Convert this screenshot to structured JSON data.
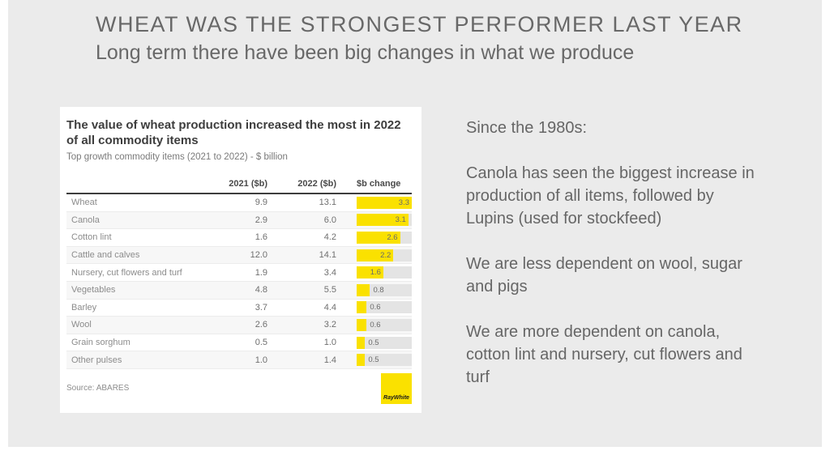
{
  "slide": {
    "title": "WHEAT WAS THE STRONGEST PERFORMER LAST YEAR",
    "subtitle": "Long term there have been big changes in what we produce"
  },
  "chart_data": {
    "type": "table",
    "title": "The value of wheat production increased the most in 2022\nof all commodity items",
    "subtitle": "Top growth commodity items (2021 to 2022) - $ billion",
    "columns": [
      "2021 ($b)",
      "2022 ($b)",
      "$b change"
    ],
    "rows": [
      {
        "label": "Wheat",
        "v2021": 9.9,
        "v2022": 13.1,
        "change": 3.3
      },
      {
        "label": "Canola",
        "v2021": 2.9,
        "v2022": 6.0,
        "change": 3.1
      },
      {
        "label": "Cotton lint",
        "v2021": 1.6,
        "v2022": 4.2,
        "change": 2.6
      },
      {
        "label": "Cattle and calves",
        "v2021": 12.0,
        "v2022": 14.1,
        "change": 2.2
      },
      {
        "label": "Nursery, cut flowers and turf",
        "v2021": 1.9,
        "v2022": 3.4,
        "change": 1.6
      },
      {
        "label": "Vegetables",
        "v2021": 4.8,
        "v2022": 5.5,
        "change": 0.8
      },
      {
        "label": "Barley",
        "v2021": 3.7,
        "v2022": 4.4,
        "change": 0.6
      },
      {
        "label": "Wool",
        "v2021": 2.6,
        "v2022": 3.2,
        "change": 0.6
      },
      {
        "label": "Grain sorghum",
        "v2021": 0.5,
        "v2022": 1.0,
        "change": 0.5
      },
      {
        "label": "Other pulses",
        "v2021": 1.0,
        "v2022": 1.4,
        "change": 0.5
      }
    ],
    "bar_axis_max": 3.3,
    "bar_color": "#FAE100",
    "bar_track_color": "#E4E4E4",
    "legend_position": "none",
    "grid": false,
    "source": "Source: ABARES",
    "logo_text": "RayWhite"
  },
  "sidebar": {
    "paragraphs": [
      "Since the 1980s:",
      "Canola has seen the biggest increase in\nproduction of all items, followed by\nLupins (used for stockfeed)",
      "We are less dependent on wool, sugar\nand pigs",
      "We are more dependent on canola,\ncotton lint and nursery, cut flowers and\nturf"
    ]
  },
  "colors": {
    "slide_background": "#EBEBEB",
    "card_background": "#FFFFFF",
    "accent_yellow": "#FAE100",
    "bar_track": "#E4E4E4",
    "title_gray": "#686868",
    "body_gray": "#666666"
  }
}
